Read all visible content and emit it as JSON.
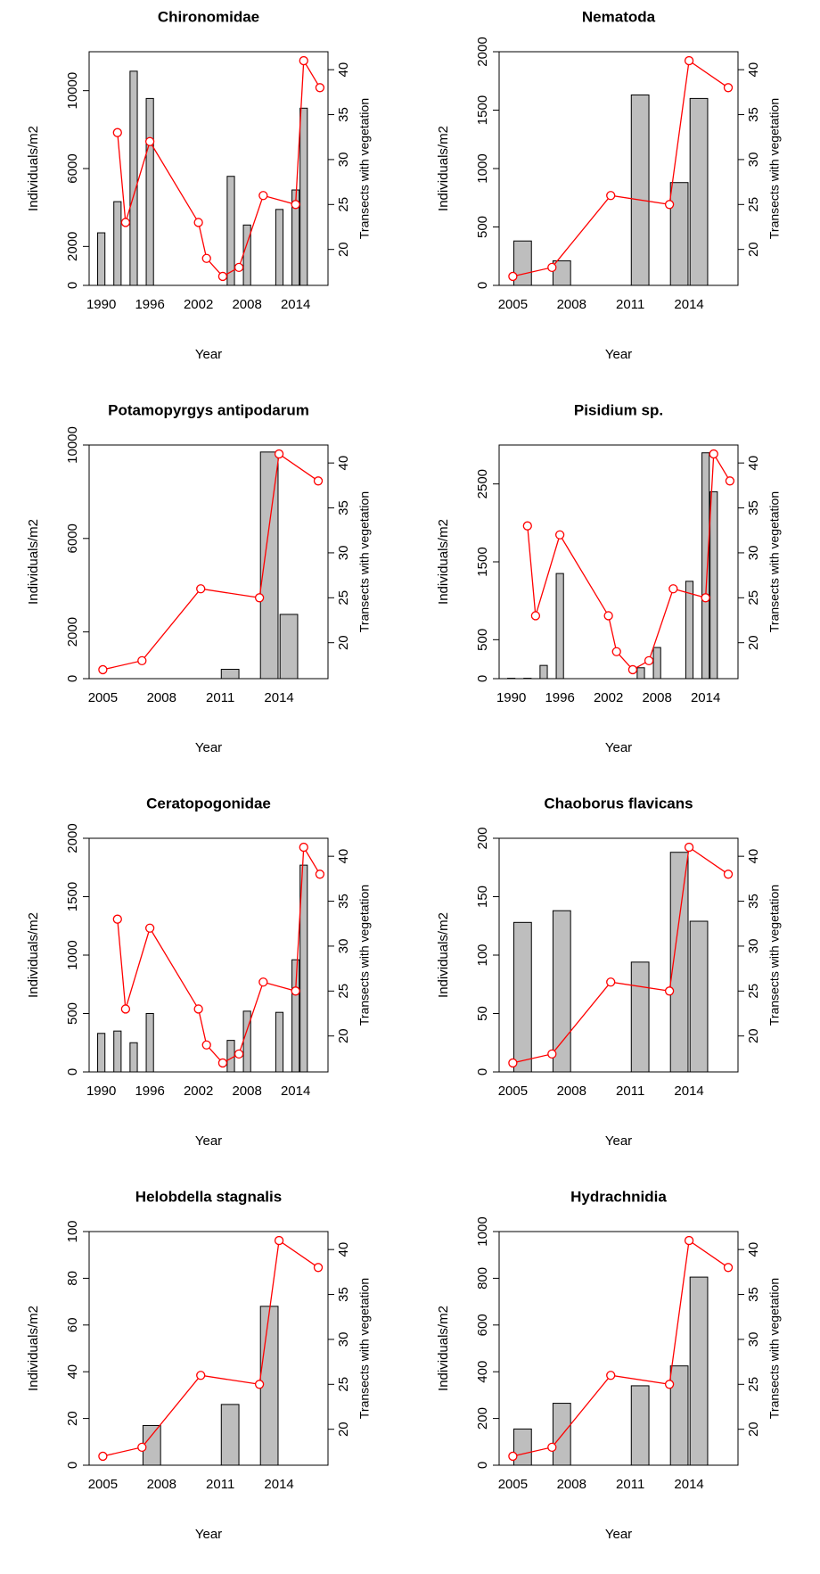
{
  "chart_data": [
    {
      "type": "bar",
      "title": "Chironomidae",
      "xlabel": "Year",
      "ylabel": "Individuals/m2",
      "y2label": "Transects with vegetation",
      "xlim": [
        1988.5,
        2018
      ],
      "xticks": [
        1990,
        1996,
        2002,
        2008,
        2014
      ],
      "ylim": [
        0,
        12000
      ],
      "yticks": [
        0,
        2000,
        6000,
        10000
      ],
      "y2lim": [
        16,
        42
      ],
      "y2ticks": [
        20,
        25,
        30,
        35,
        40
      ],
      "series": [
        {
          "type": "bar",
          "color": "#bebebe",
          "x": [
            1990,
            1992,
            1994,
            1996,
            2006,
            2008,
            2012,
            2014,
            2015
          ],
          "values": [
            2700,
            4300,
            11000,
            9600,
            5600,
            3100,
            3900,
            4900,
            9100
          ]
        },
        {
          "type": "line",
          "color": "#ff0000",
          "axis": "y2",
          "x": [
            1992,
            1993,
            1996,
            2002,
            2003,
            2005,
            2007,
            2010,
            2014,
            2015,
            2017
          ],
          "values": [
            33,
            23,
            32,
            23,
            19,
            17,
            18,
            26,
            25,
            41,
            38
          ]
        }
      ]
    },
    {
      "type": "bar",
      "title": "Nematoda",
      "xlabel": "Year",
      "ylabel": "Individuals/m2",
      "y2label": "Transects with vegetation",
      "xlim": [
        2004.3,
        2016.5
      ],
      "xticks": [
        2005,
        2008,
        2011,
        2014
      ],
      "ylim": [
        0,
        2000
      ],
      "yticks": [
        0,
        500,
        1000,
        1500,
        2000
      ],
      "y2lim": [
        16,
        42
      ],
      "y2ticks": [
        20,
        25,
        30,
        35,
        40
      ],
      "series": [
        {
          "type": "bar",
          "color": "#bebebe",
          "x": [
            2005.5,
            2007.5,
            2011.5,
            2013.5,
            2014.5
          ],
          "values": [
            380,
            210,
            1630,
            880,
            1600
          ]
        },
        {
          "type": "line",
          "color": "#ff0000",
          "axis": "y2",
          "x": [
            2005,
            2007,
            2010,
            2013,
            2014,
            2016
          ],
          "values": [
            17,
            18,
            26,
            25,
            41,
            38
          ]
        }
      ]
    },
    {
      "type": "bar",
      "title": "Potamopyrgys antipodarum",
      "xlabel": "Year",
      "ylabel": "Individuals/m2",
      "y2label": "Transects with vegetation",
      "xlim": [
        2004.3,
        2016.5
      ],
      "xticks": [
        2005,
        2008,
        2011,
        2014
      ],
      "ylim": [
        0,
        10000
      ],
      "yticks": [
        0,
        2000,
        6000,
        10000
      ],
      "y2lim": [
        16,
        42
      ],
      "y2ticks": [
        20,
        25,
        30,
        35,
        40
      ],
      "series": [
        {
          "type": "bar",
          "color": "#bebebe",
          "x": [
            2011.5,
            2013.5,
            2014.5
          ],
          "values": [
            400,
            9700,
            2750
          ]
        },
        {
          "type": "line",
          "color": "#ff0000",
          "axis": "y2",
          "x": [
            2005,
            2007,
            2010,
            2013,
            2014,
            2016
          ],
          "values": [
            17,
            18,
            26,
            25,
            41,
            38
          ]
        }
      ]
    },
    {
      "type": "bar",
      "title": "Pisidium sp.",
      "xlabel": "Year",
      "ylabel": "Individuals/m2",
      "y2label": "Transects with vegetation",
      "xlim": [
        1988.5,
        2018
      ],
      "xticks": [
        1990,
        1996,
        2002,
        2008,
        2014
      ],
      "ylim": [
        0,
        3000
      ],
      "yticks": [
        0,
        500,
        1500,
        2500
      ],
      "y2lim": [
        16,
        42
      ],
      "y2ticks": [
        20,
        25,
        30,
        35,
        40
      ],
      "series": [
        {
          "type": "bar",
          "color": "#bebebe",
          "x": [
            1990,
            1992,
            1994,
            1996,
            2006,
            2008,
            2012,
            2014,
            2015
          ],
          "values": [
            5,
            5,
            170,
            1350,
            140,
            400,
            1250,
            2900,
            2400
          ]
        },
        {
          "type": "line",
          "color": "#ff0000",
          "axis": "y2",
          "x": [
            1992,
            1993,
            1996,
            2002,
            2003,
            2005,
            2007,
            2010,
            2014,
            2015,
            2017
          ],
          "values": [
            33,
            23,
            32,
            23,
            19,
            17,
            18,
            26,
            25,
            41,
            38
          ]
        }
      ]
    },
    {
      "type": "bar",
      "title": "Ceratopogonidae",
      "xlabel": "Year",
      "ylabel": "Individuals/m2",
      "y2label": "Transects with vegetation",
      "xlim": [
        1988.5,
        2018
      ],
      "xticks": [
        1990,
        1996,
        2002,
        2008,
        2014
      ],
      "ylim": [
        0,
        2000
      ],
      "yticks": [
        0,
        500,
        1000,
        1500,
        2000
      ],
      "y2lim": [
        16,
        42
      ],
      "y2ticks": [
        20,
        25,
        30,
        35,
        40
      ],
      "series": [
        {
          "type": "bar",
          "color": "#bebebe",
          "x": [
            1990,
            1992,
            1994,
            1996,
            2006,
            2008,
            2012,
            2014,
            2015
          ],
          "values": [
            330,
            350,
            250,
            500,
            270,
            520,
            510,
            960,
            1770
          ]
        },
        {
          "type": "line",
          "color": "#ff0000",
          "axis": "y2",
          "x": [
            1992,
            1993,
            1996,
            2002,
            2003,
            2005,
            2007,
            2010,
            2014,
            2015,
            2017
          ],
          "values": [
            33,
            23,
            32,
            23,
            19,
            17,
            18,
            26,
            25,
            41,
            38
          ]
        }
      ]
    },
    {
      "type": "bar",
      "title": "Chaoborus flavicans",
      "xlabel": "Year",
      "ylabel": "Individuals/m2",
      "y2label": "Transects with vegetation",
      "xlim": [
        2004.3,
        2016.5
      ],
      "xticks": [
        2005,
        2008,
        2011,
        2014
      ],
      "ylim": [
        0,
        200
      ],
      "yticks": [
        0,
        50,
        100,
        150,
        200
      ],
      "y2lim": [
        16,
        42
      ],
      "y2ticks": [
        20,
        25,
        30,
        35,
        40
      ],
      "series": [
        {
          "type": "bar",
          "color": "#bebebe",
          "x": [
            2005.5,
            2007.5,
            2011.5,
            2013.5,
            2014.5
          ],
          "values": [
            128,
            138,
            94,
            188,
            129
          ]
        },
        {
          "type": "line",
          "color": "#ff0000",
          "axis": "y2",
          "x": [
            2005,
            2007,
            2010,
            2013,
            2014,
            2016
          ],
          "values": [
            17,
            18,
            26,
            25,
            41,
            38
          ]
        }
      ]
    },
    {
      "type": "bar",
      "title": "Helobdella stagnalis",
      "xlabel": "Year",
      "ylabel": "Individuals/m2",
      "y2label": "Transects with vegetation",
      "xlim": [
        2004.3,
        2016.5
      ],
      "xticks": [
        2005,
        2008,
        2011,
        2014
      ],
      "ylim": [
        0,
        100
      ],
      "yticks": [
        0,
        20,
        40,
        60,
        80,
        100
      ],
      "y2lim": [
        16,
        42
      ],
      "y2ticks": [
        20,
        25,
        30,
        35,
        40
      ],
      "series": [
        {
          "type": "bar",
          "color": "#bebebe",
          "x": [
            2007.5,
            2011.5,
            2013.5
          ],
          "values": [
            17,
            26,
            68
          ]
        },
        {
          "type": "line",
          "color": "#ff0000",
          "axis": "y2",
          "x": [
            2005,
            2007,
            2010,
            2013,
            2014,
            2016
          ],
          "values": [
            17,
            18,
            26,
            25,
            41,
            38
          ]
        }
      ]
    },
    {
      "type": "bar",
      "title": "Hydrachnidia",
      "xlabel": "Year",
      "ylabel": "Individuals/m2",
      "y2label": "Transects with vegetation",
      "xlim": [
        2004.3,
        2016.5
      ],
      "xticks": [
        2005,
        2008,
        2011,
        2014
      ],
      "ylim": [
        0,
        1000
      ],
      "yticks": [
        0,
        200,
        400,
        600,
        800,
        1000
      ],
      "y2lim": [
        16,
        42
      ],
      "y2ticks": [
        20,
        25,
        30,
        35,
        40
      ],
      "series": [
        {
          "type": "bar",
          "color": "#bebebe",
          "x": [
            2005.5,
            2007.5,
            2011.5,
            2013.5,
            2014.5
          ],
          "values": [
            155,
            265,
            340,
            425,
            805
          ]
        },
        {
          "type": "line",
          "color": "#ff0000",
          "axis": "y2",
          "x": [
            2005,
            2007,
            2010,
            2013,
            2014,
            2016
          ],
          "values": [
            17,
            18,
            26,
            25,
            41,
            38
          ]
        }
      ]
    }
  ]
}
